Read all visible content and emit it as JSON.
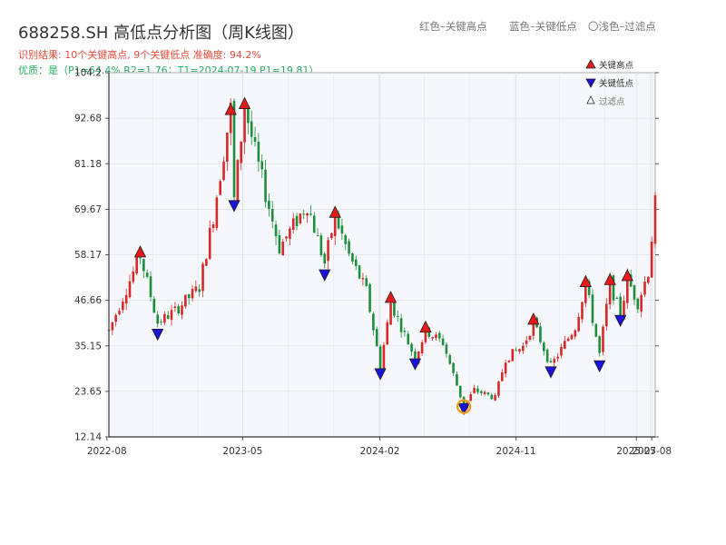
{
  "header": {
    "title": "688258.SH 高低点分析图（周K线图）",
    "result_line": "识别结果: 10个关键高点, 9个关键低点   准确度: 94.2%",
    "quality_line": "优质：是（P1=64.4%  R2=1.76；T1=2024-07-19 P1=19.81）"
  },
  "top_legend": {
    "red_label": "红色–关键高点",
    "blue_label": "蓝色–关键低点",
    "light_label": "〇浅色–过滤点"
  },
  "legend": {
    "placement": "top-right",
    "items": [
      {
        "label": "关键高点",
        "marker": "triangle-up",
        "color": "#e8191b"
      },
      {
        "label": "关键低点",
        "marker": "triangle-down",
        "color": "#1a12d8"
      },
      {
        "label": "过滤点",
        "marker": "triangle-up-hollow",
        "color": "#ffffff"
      }
    ]
  },
  "colors": {
    "up": "#d42a2a",
    "down": "#1e8e3e",
    "high_marker": "#e8191b",
    "low_marker": "#1a12d8",
    "filtered_circle": "#f39c12",
    "plot_bg": "#f5f7fa",
    "grid": "#dde2ea"
  },
  "chart_data": {
    "type": "candlestick",
    "x_axis": {
      "type": "date",
      "range": [
        "2022-08-05",
        "2025-08-08"
      ],
      "tick_labels": [
        "2022-08",
        "2023-05",
        "2024-02",
        "2024-11",
        "2025-07",
        "2025-08"
      ]
    },
    "y_axis": {
      "range": [
        12.14,
        104.2
      ],
      "tick_labels": [
        "12.14",
        "23.65",
        "35.15",
        "46.66",
        "58.17",
        "69.67",
        "81.18",
        "92.68",
        "104.2"
      ]
    },
    "grid": true,
    "anchors": [
      [
        "2022-08-05",
        39
      ],
      [
        "2022-10-07",
        58
      ],
      [
        "2022-11-11",
        41
      ],
      [
        "2022-12-16",
        44
      ],
      [
        "2023-02-03",
        50
      ],
      [
        "2023-03-03",
        68
      ],
      [
        "2023-04-07",
        95
      ],
      [
        "2023-04-14",
        72
      ],
      [
        "2023-05-05",
        96
      ],
      [
        "2023-05-26",
        84
      ],
      [
        "2023-07-14",
        60
      ],
      [
        "2023-09-08",
        71
      ],
      [
        "2023-10-13",
        56
      ],
      [
        "2023-11-03",
        68
      ],
      [
        "2023-12-01",
        58
      ],
      [
        "2024-01-05",
        49
      ],
      [
        "2024-02-02",
        30
      ],
      [
        "2024-02-23",
        46
      ],
      [
        "2024-03-15",
        40
      ],
      [
        "2024-04-12",
        32
      ],
      [
        "2024-05-03",
        39
      ],
      [
        "2024-06-07",
        36
      ],
      [
        "2024-07-19",
        19.81
      ],
      [
        "2024-08-09",
        24
      ],
      [
        "2024-09-20",
        22
      ],
      [
        "2024-10-11",
        32
      ],
      [
        "2024-11-15",
        35
      ],
      [
        "2024-12-06",
        41
      ],
      [
        "2025-01-10",
        30
      ],
      [
        "2025-02-28",
        40
      ],
      [
        "2025-03-21",
        51
      ],
      [
        "2025-04-18",
        33
      ],
      [
        "2025-05-09",
        51
      ],
      [
        "2025-05-30",
        43
      ],
      [
        "2025-06-13",
        52
      ],
      [
        "2025-07-04",
        46
      ],
      [
        "2025-07-25",
        54
      ],
      [
        "2025-08-08",
        71
      ]
    ],
    "key_highs": [
      [
        "2022-10-07",
        59.0
      ],
      [
        "2023-04-07",
        95.0
      ],
      [
        "2023-05-05",
        96.5
      ],
      [
        "2023-11-03",
        69.0
      ],
      [
        "2024-02-23",
        47.5
      ],
      [
        "2024-05-03",
        40.0
      ],
      [
        "2024-12-06",
        42.0
      ],
      [
        "2025-03-21",
        51.5
      ],
      [
        "2025-05-09",
        52.0
      ],
      [
        "2025-06-13",
        53.0
      ]
    ],
    "key_lows": [
      [
        "2022-11-11",
        38.0
      ],
      [
        "2023-04-14",
        70.5
      ],
      [
        "2023-10-13",
        53.0
      ],
      [
        "2024-02-02",
        28.0
      ],
      [
        "2024-04-12",
        30.5
      ],
      [
        "2024-07-19",
        19.2
      ],
      [
        "2025-01-10",
        28.5
      ],
      [
        "2025-04-18",
        30.0
      ],
      [
        "2025-05-30",
        41.5
      ]
    ],
    "filtered_points": [
      [
        "2024-07-19",
        19.81
      ]
    ]
  }
}
